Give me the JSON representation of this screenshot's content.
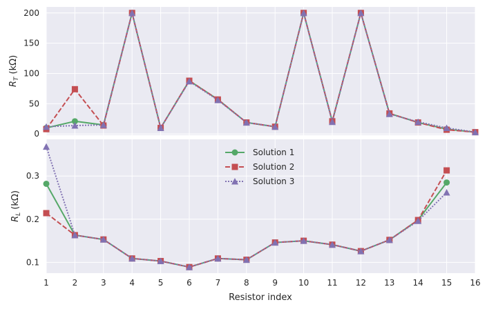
{
  "chart_data": {
    "type": "line",
    "xlabel": "Resistor index",
    "x": [
      1,
      2,
      3,
      4,
      5,
      6,
      7,
      8,
      9,
      10,
      11,
      12,
      13,
      14,
      15,
      16
    ],
    "xlim": [
      1,
      16
    ],
    "legend": {
      "placement": "center",
      "entries": [
        "Solution 1",
        "Solution 2",
        "Solution 3"
      ]
    },
    "grid": true,
    "colors": {
      "Solution 1": "#55a868",
      "Solution 2": "#c44e52",
      "Solution 3": "#8172b2",
      "axes_background": "#eaeaf2",
      "grid": "#ffffff"
    },
    "panels": [
      {
        "id": "top",
        "ylabel_symbol": "R",
        "ylabel_sub": "T",
        "ylabel_unit": " (kΩ)",
        "ylim": [
          -2,
          210
        ],
        "yticks": [
          0,
          50,
          100,
          150,
          200
        ],
        "series": [
          {
            "name": "Solution 1",
            "style": "solid",
            "marker": "circle",
            "values": [
              10,
              21,
              15,
              200,
              10,
              88,
              57,
              19,
              12,
              200,
              21,
              200,
              34,
              19,
              8,
              3
            ]
          },
          {
            "name": "Solution 2",
            "style": "dashed",
            "marker": "square",
            "values": [
              8,
              74,
              14,
              200,
              10,
              88,
              57,
              19,
              12,
              200,
              21,
              200,
              34,
              19,
              7,
              3
            ]
          },
          {
            "name": "Solution 3",
            "style": "dotted",
            "marker": "triangle",
            "values": [
              12,
              14,
              15,
              200,
              10,
              87,
              56,
              19,
              12,
              200,
              20,
              200,
              33,
              20,
              10,
              3
            ]
          }
        ]
      },
      {
        "id": "bottom",
        "ylabel_symbol": "R",
        "ylabel_sub": "L",
        "ylabel_unit": " (kΩ)",
        "ylim": [
          0.075,
          0.385
        ],
        "yticks": [
          0.1,
          0.2,
          0.3
        ],
        "ytick_labels": [
          "0.1",
          "0.2",
          "0.3"
        ],
        "series": [
          {
            "name": "Solution 1",
            "style": "solid",
            "marker": "circle",
            "values": [
              0.282,
              0.163,
              0.153,
              0.109,
              0.103,
              0.089,
              0.109,
              0.106,
              0.146,
              0.15,
              0.141,
              0.126,
              0.152,
              0.198,
              0.285,
              null
            ]
          },
          {
            "name": "Solution 2",
            "style": "dashed",
            "marker": "square",
            "values": [
              0.214,
              0.163,
              0.153,
              0.109,
              0.103,
              0.089,
              0.109,
              0.106,
              0.146,
              0.15,
              0.141,
              0.126,
              0.152,
              0.198,
              0.313,
              null
            ]
          },
          {
            "name": "Solution 3",
            "style": "dotted",
            "marker": "triangle",
            "values": [
              0.368,
              0.163,
              0.153,
              0.109,
              0.103,
              0.089,
              0.109,
              0.106,
              0.146,
              0.15,
              0.141,
              0.126,
              0.152,
              0.196,
              0.262,
              null
            ]
          }
        ]
      }
    ]
  }
}
